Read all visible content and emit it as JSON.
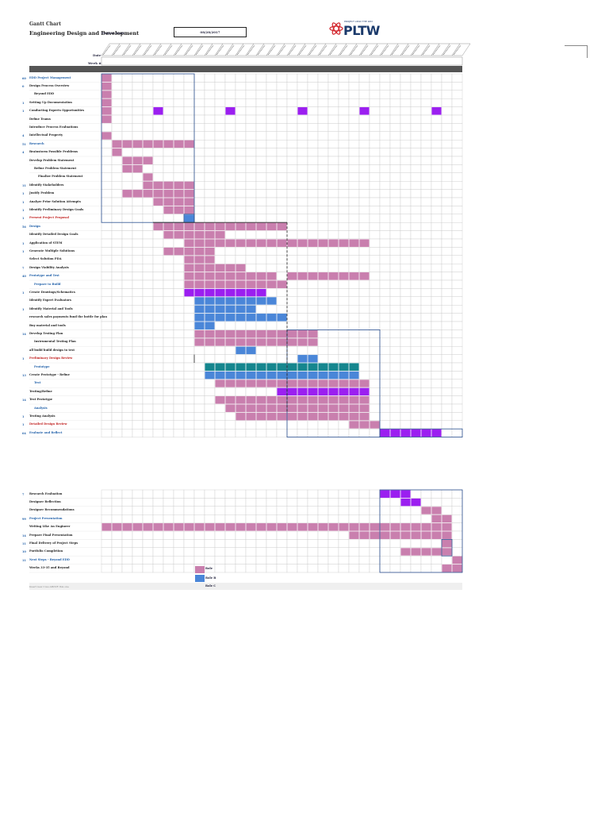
{
  "header": {
    "title": "Gantt Chart",
    "subtitle": "Engineering Design and Development",
    "start_label": "Project Start",
    "start_date": "08/28/2017",
    "logo_text": "PLTW",
    "logo_small": "PROJECT LEAD THE WAY",
    "date_label": "Date",
    "week_label": "Week #"
  },
  "legend": {
    "roles": [
      "Role",
      "Role B",
      "Role C"
    ]
  },
  "footnote": "Insert new rows ABOVE this one",
  "colors": {
    "pink": "#c97fae",
    "blue": "#4a86d8",
    "purple": "#9b1ff0",
    "teal": "#15868e",
    "dark": "#555555",
    "section": "#1f5fa8",
    "red": "#c0201f"
  },
  "chart_data": {
    "type": "table",
    "week_count": 35,
    "rows": [
      {
        "num": "60",
        "label": "EDD Project Management",
        "style": "section"
      },
      {
        "num": "0",
        "label": "Design Process Overview",
        "style": ""
      },
      {
        "num": "",
        "label": "Beyond EDD",
        "style": "ind1"
      },
      {
        "num": "1",
        "label": "Setting Up Documentation",
        "style": ""
      },
      {
        "num": "1",
        "label": "Conducting Experts Opportunities",
        "style": ""
      },
      {
        "num": "",
        "label": "Define Teams",
        "style": ""
      },
      {
        "num": "",
        "label": "Introduce Process Evaluations",
        "style": ""
      },
      {
        "num": "4",
        "label": "Intellectual Property",
        "style": ""
      },
      {
        "num": "51",
        "label": "Research",
        "style": "section"
      },
      {
        "num": "4",
        "label": "Brainstorm Possible Problems",
        "style": ""
      },
      {
        "num": "",
        "label": "Develop Problem Statement",
        "style": ""
      },
      {
        "num": "",
        "label": "Refine Problem Statement",
        "style": "ind1"
      },
      {
        "num": "",
        "label": "Finalize Problem Statement",
        "style": "ind2"
      },
      {
        "num": "11",
        "label": "Identify Stakeholders",
        "style": ""
      },
      {
        "num": "1",
        "label": "Justify Problem",
        "style": ""
      },
      {
        "num": "1",
        "label": "Analyze Prior Solution Attempts",
        "style": ""
      },
      {
        "num": "1",
        "label": "Identify Preliminary Design Goals",
        "style": ""
      },
      {
        "num": "1",
        "label": "Present Project Proposal",
        "style": "red"
      },
      {
        "num": "56",
        "label": "Design",
        "style": "section"
      },
      {
        "num": "",
        "label": "Identify Detailed Design Goals",
        "style": ""
      },
      {
        "num": "1",
        "label": "Application of STEM",
        "style": ""
      },
      {
        "num": "1",
        "label": "Generate Multiple Solutions",
        "style": ""
      },
      {
        "num": "",
        "label": "Select Solution PDA",
        "style": ""
      },
      {
        "num": "7",
        "label": "Design Viability Analysis",
        "style": ""
      },
      {
        "num": "40",
        "label": "Prototype and Test",
        "style": "section"
      },
      {
        "num": "",
        "label": "Prepare to Build",
        "style": "ind1 section"
      },
      {
        "num": "1",
        "label": "Create Drawings/Schematics",
        "style": ""
      },
      {
        "num": "",
        "label": "Identify Expert Evaluators",
        "style": ""
      },
      {
        "num": "1",
        "label": "Identify Material and Tools",
        "style": ""
      },
      {
        "num": "",
        "label": "research sales payments fund the bottle for plan",
        "style": ""
      },
      {
        "num": "",
        "label": "Buy material and tools",
        "style": ""
      },
      {
        "num": "14",
        "label": "Develop Testing Plan",
        "style": ""
      },
      {
        "num": "",
        "label": "Instrumental Testing Plan",
        "style": "ind1"
      },
      {
        "num": "",
        "label": "all build build design to test",
        "style": ""
      },
      {
        "num": "1",
        "label": "Preliminary Design Review",
        "style": "red"
      },
      {
        "num": "",
        "label": "Prototype",
        "style": "ind1 section"
      },
      {
        "num": "13",
        "label": "Create Prototype - Refine",
        "style": ""
      },
      {
        "num": "",
        "label": "Test",
        "style": "ind1 section"
      },
      {
        "num": "",
        "label": "Testing/Refine",
        "style": ""
      },
      {
        "num": "14",
        "label": "Test Prototype",
        "style": ""
      },
      {
        "num": "",
        "label": "Analysis",
        "style": "ind1 section"
      },
      {
        "num": "1",
        "label": "Testing Analysis",
        "style": ""
      },
      {
        "num": "1",
        "label": "Detailed Design Review",
        "style": "red"
      },
      {
        "num": "64",
        "label": "Evaluate and Reflect",
        "style": "section"
      }
    ],
    "rows2": [
      {
        "num": "7",
        "label": "Research Evaluation",
        "style": ""
      },
      {
        "num": "",
        "label": "Designer Reflection",
        "style": ""
      },
      {
        "num": "",
        "label": "Designer Recommendations",
        "style": ""
      },
      {
        "num": "99",
        "label": "Project Presentation",
        "style": "section"
      },
      {
        "num": "",
        "label": "Writing Like An Engineer",
        "style": ""
      },
      {
        "num": "14",
        "label": "Prepare Final Presentation",
        "style": ""
      },
      {
        "num": "11",
        "label": "Final Delivery of Project Steps",
        "style": ""
      },
      {
        "num": "10",
        "label": "Portfolio Completion",
        "style": ""
      },
      {
        "num": "11",
        "label": "Next Steps - Beyond EDD",
        "style": "section"
      },
      {
        "num": "",
        "label": "Weeks 33-35 and Beyond",
        "style": ""
      }
    ],
    "bars": [
      [
        0,
        0,
        1,
        "pink"
      ],
      [
        1,
        0,
        1,
        "pink"
      ],
      [
        2,
        0,
        1,
        "pink"
      ],
      [
        3,
        0,
        1,
        "pink"
      ],
      [
        4,
        0,
        1,
        "pink"
      ],
      [
        4,
        5,
        1,
        "purple"
      ],
      [
        4,
        12,
        1,
        "purple"
      ],
      [
        4,
        19,
        1,
        "purple"
      ],
      [
        4,
        25,
        1,
        "purple"
      ],
      [
        4,
        32,
        1,
        "purple"
      ],
      [
        5,
        0,
        1,
        "pink"
      ],
      [
        7,
        0,
        1,
        "pink"
      ],
      [
        8,
        1,
        8,
        "pink"
      ],
      [
        9,
        1,
        1,
        "pink"
      ],
      [
        10,
        2,
        3,
        "pink"
      ],
      [
        11,
        2,
        2,
        "pink"
      ],
      [
        12,
        4,
        1,
        "pink"
      ],
      [
        13,
        4,
        5,
        "pink"
      ],
      [
        14,
        2,
        7,
        "pink"
      ],
      [
        15,
        5,
        4,
        "pink"
      ],
      [
        16,
        6,
        3,
        "pink"
      ],
      [
        17,
        8,
        1,
        "blue"
      ],
      [
        18,
        5,
        13,
        "pink"
      ],
      [
        19,
        6,
        6,
        "pink"
      ],
      [
        20,
        8,
        18,
        "pink"
      ],
      [
        21,
        6,
        5,
        "pink"
      ],
      [
        22,
        8,
        3,
        "pink"
      ],
      [
        23,
        8,
        6,
        "pink"
      ],
      [
        24,
        8,
        9,
        "pink"
      ],
      [
        24,
        18,
        8,
        "pink"
      ],
      [
        25,
        8,
        10,
        "pink"
      ],
      [
        26,
        8,
        8,
        "purple"
      ],
      [
        27,
        9,
        8,
        "blue"
      ],
      [
        28,
        9,
        6,
        "blue"
      ],
      [
        29,
        9,
        9,
        "blue"
      ],
      [
        30,
        9,
        2,
        "blue"
      ],
      [
        31,
        9,
        12,
        "pink"
      ],
      [
        32,
        9,
        12,
        "pink"
      ],
      [
        33,
        13,
        2,
        "blue"
      ],
      [
        34,
        19,
        2,
        "blue"
      ],
      [
        35,
        10,
        15,
        "teal"
      ],
      [
        36,
        10,
        15,
        "blue"
      ],
      [
        37,
        11,
        15,
        "pink"
      ],
      [
        38,
        17,
        9,
        "purple"
      ],
      [
        39,
        11,
        15,
        "pink"
      ],
      [
        40,
        12,
        14,
        "pink"
      ],
      [
        41,
        13,
        13,
        "pink"
      ],
      [
        42,
        24,
        3,
        "pink"
      ],
      [
        43,
        27,
        6,
        "purple"
      ]
    ],
    "bars2": [
      [
        0,
        27,
        3,
        "purple"
      ],
      [
        1,
        29,
        2,
        "purple"
      ],
      [
        2,
        31,
        2,
        "pink"
      ],
      [
        3,
        32,
        2,
        "pink"
      ],
      [
        4,
        0,
        34,
        "pink"
      ],
      [
        5,
        24,
        10,
        "pink"
      ],
      [
        6,
        33,
        1,
        "pink"
      ],
      [
        7,
        29,
        5,
        "pink"
      ],
      [
        8,
        34,
        1,
        "pink"
      ],
      [
        9,
        33,
        2,
        "pink"
      ]
    ]
  }
}
